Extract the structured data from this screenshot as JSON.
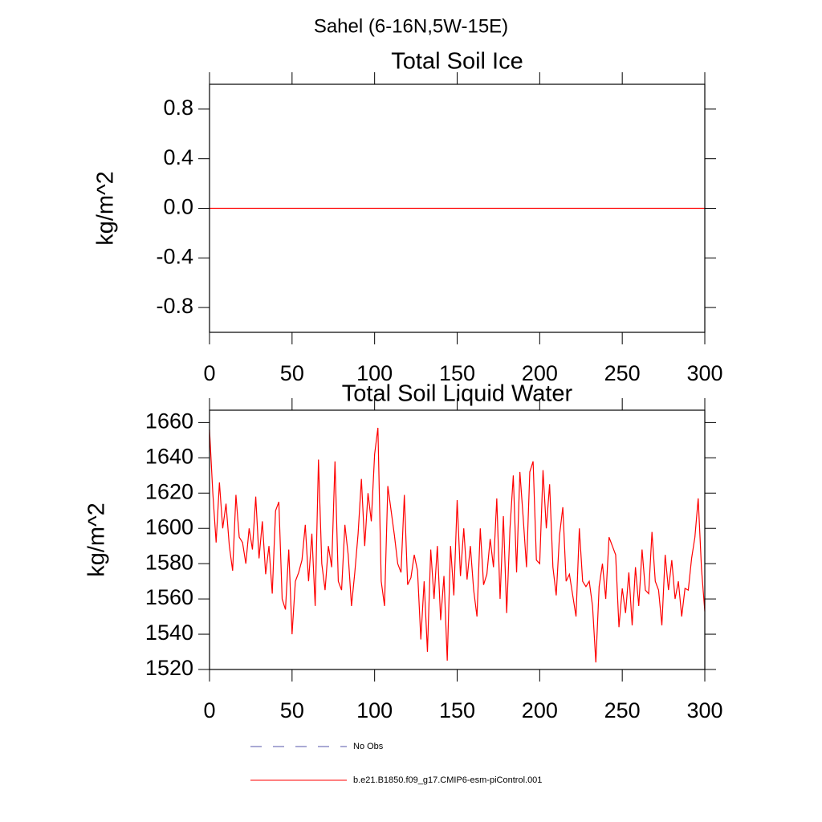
{
  "title": "Sahel (6-16N,5W-15E)",
  "legend": [
    {
      "name": "No Obs",
      "color": "#5555aa",
      "dash": true
    },
    {
      "name": "b.e21.B1850.f09_g17.CMIP6-esm-piControl.001",
      "color": "#ff0000",
      "dash": false
    }
  ],
  "chart_data": [
    {
      "type": "line",
      "title": "Total Soil Ice",
      "ylabel": "kg/m^2",
      "x": [
        0,
        300
      ],
      "series": [
        {
          "color": "#ff0000",
          "values": [
            0,
            0
          ]
        }
      ],
      "xlim": [
        0,
        300
      ],
      "ylim": [
        -1,
        1
      ],
      "xticks": [
        0,
        50,
        100,
        150,
        200,
        250,
        300
      ],
      "yticks": [
        -0.8,
        -0.4,
        {
          "value": 0,
          "label": "0.0"
        },
        0.4,
        0.8
      ]
    },
    {
      "type": "line",
      "title": "Total Soil Liquid Water",
      "ylabel": "kg/m^2",
      "x": [
        0,
        2,
        4,
        6,
        8,
        10,
        12,
        14,
        16,
        18,
        20,
        22,
        24,
        26,
        28,
        30,
        32,
        34,
        36,
        38,
        40,
        42,
        44,
        46,
        48,
        50,
        52,
        54,
        56,
        58,
        60,
        62,
        64,
        66,
        68,
        70,
        72,
        74,
        76,
        78,
        80,
        82,
        84,
        86,
        88,
        90,
        92,
        94,
        96,
        98,
        100,
        102,
        104,
        106,
        108,
        110,
        112,
        114,
        116,
        118,
        120,
        122,
        124,
        126,
        128,
        130,
        132,
        134,
        136,
        138,
        140,
        142,
        144,
        146,
        148,
        150,
        152,
        154,
        156,
        158,
        160,
        162,
        164,
        166,
        168,
        170,
        172,
        174,
        176,
        178,
        180,
        182,
        184,
        186,
        188,
        190,
        192,
        194,
        196,
        198,
        200,
        202,
        204,
        206,
        208,
        210,
        212,
        214,
        216,
        218,
        220,
        222,
        224,
        226,
        228,
        230,
        232,
        234,
        236,
        238,
        240,
        242,
        244,
        246,
        248,
        250,
        252,
        254,
        256,
        258,
        260,
        262,
        264,
        266,
        268,
        270,
        272,
        274,
        276,
        278,
        280,
        282,
        284,
        286,
        288,
        290,
        292,
        294,
        296,
        298,
        300
      ],
      "series": [
        {
          "color": "#ff0000",
          "values": [
            1656,
            1620,
            1592,
            1626,
            1600,
            1614,
            1590,
            1576,
            1619,
            1595,
            1592,
            1580,
            1600,
            1588,
            1618,
            1583,
            1604,
            1574,
            1590,
            1563,
            1610,
            1615,
            1560,
            1554,
            1588,
            1540,
            1570,
            1575,
            1582,
            1602,
            1570,
            1597,
            1556,
            1639,
            1580,
            1565,
            1590,
            1578,
            1638,
            1570,
            1565,
            1602,
            1585,
            1556,
            1575,
            1597,
            1628,
            1590,
            1620,
            1604,
            1642,
            1657,
            1570,
            1556,
            1624,
            1610,
            1596,
            1580,
            1575,
            1619,
            1568,
            1572,
            1585,
            1576,
            1537,
            1570,
            1530,
            1588,
            1560,
            1590,
            1548,
            1573,
            1525,
            1590,
            1562,
            1616,
            1573,
            1600,
            1571,
            1590,
            1565,
            1550,
            1600,
            1568,
            1574,
            1594,
            1578,
            1617,
            1560,
            1607,
            1552,
            1600,
            1630,
            1575,
            1632,
            1606,
            1578,
            1632,
            1638,
            1582,
            1580,
            1633,
            1600,
            1625,
            1578,
            1562,
            1596,
            1612,
            1570,
            1574,
            1562,
            1550,
            1600,
            1570,
            1567,
            1570,
            1556,
            1524,
            1567,
            1580,
            1560,
            1595,
            1590,
            1585,
            1544,
            1566,
            1552,
            1575,
            1545,
            1578,
            1556,
            1588,
            1565,
            1563,
            1598,
            1570,
            1565,
            1545,
            1585,
            1565,
            1582,
            1560,
            1570,
            1550,
            1566,
            1565,
            1583,
            1595,
            1617,
            1577,
            1553
          ]
        }
      ],
      "xlim": [
        0,
        300
      ],
      "ylim": [
        1520,
        1667
      ],
      "xticks": [
        0,
        50,
        100,
        150,
        200,
        250,
        300
      ],
      "yticks": [
        1520,
        1540,
        1560,
        1580,
        1600,
        1620,
        1640,
        1660
      ]
    }
  ]
}
